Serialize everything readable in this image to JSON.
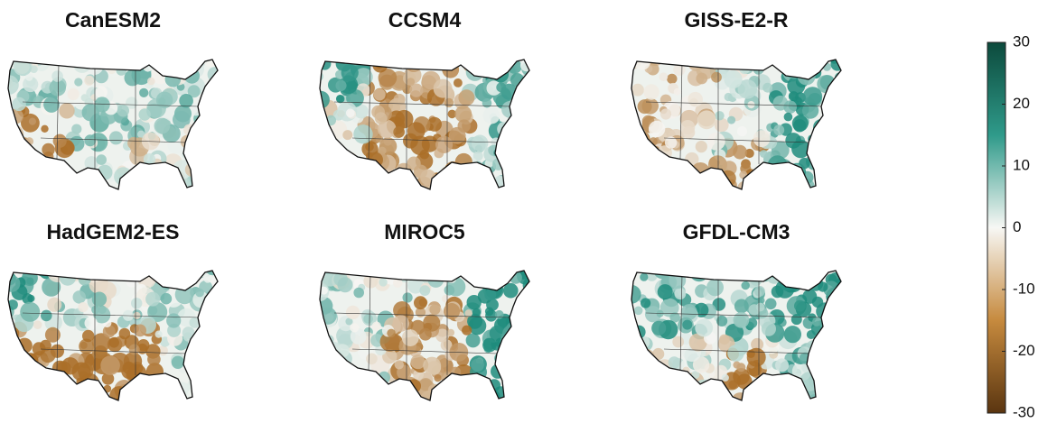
{
  "maps": [
    {
      "title": "CanESM2"
    },
    {
      "title": "CCSM4"
    },
    {
      "title": "GISS-E2-R"
    },
    {
      "title": "HadGEM2-ES"
    },
    {
      "title": "MIROC5"
    },
    {
      "title": "GFDL-CM3"
    }
  ],
  "colorbar": {
    "lim": [
      -30,
      30
    ],
    "ticks": [
      30,
      20,
      10,
      0,
      -10,
      -20,
      -30
    ]
  }
}
